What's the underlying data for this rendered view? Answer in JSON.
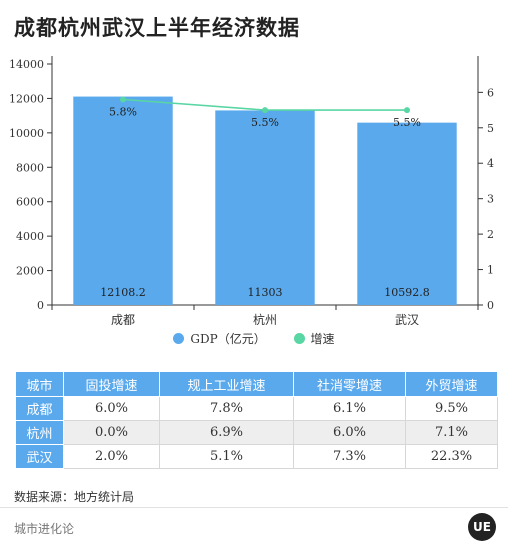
{
  "title": "成都杭州武汉上半年经济数据",
  "chart_data": {
    "type": "bar",
    "categories": [
      "成都",
      "杭州",
      "武汉"
    ],
    "series": [
      {
        "name": "GDP（亿元）",
        "kind": "bar",
        "axis": "left",
        "color": "#5aa9ec",
        "values": [
          12108.2,
          11303,
          10592.8
        ],
        "labels": [
          "12108.2",
          "11303",
          "10592.8"
        ]
      },
      {
        "name": "增速",
        "kind": "line",
        "axis": "right",
        "color": "#58d6a3",
        "values": [
          5.8,
          5.5,
          5.5
        ],
        "labels": [
          "5.8%",
          "5.5%",
          "5.5%"
        ]
      }
    ],
    "y_left": {
      "min": 0,
      "max": 14000,
      "ticks": [
        "0",
        "2000",
        "4000",
        "6000",
        "8000",
        "10000",
        "12000",
        "14000"
      ]
    },
    "y_right": {
      "min": 0,
      "max": 6.8,
      "ticks": [
        "0",
        "1",
        "2",
        "3",
        "4",
        "5",
        "6"
      ]
    },
    "legend_position": "bottom",
    "grid": false
  },
  "table": {
    "headers": [
      "城市",
      "固投增速",
      "规上工业增速",
      "社消零增速",
      "外贸增速"
    ],
    "rows": [
      {
        "city": "成都",
        "values": [
          "6.0%",
          "7.8%",
          "6.1%",
          "9.5%"
        ]
      },
      {
        "city": "杭州",
        "values": [
          "0.0%",
          "6.9%",
          "6.0%",
          "7.1%"
        ]
      },
      {
        "city": "武汉",
        "values": [
          "2.0%",
          "5.1%",
          "7.3%",
          "22.3%"
        ]
      }
    ]
  },
  "source": "数据来源：地方统计局",
  "footer": {
    "brand": "城市进化论",
    "logo": "UE"
  }
}
